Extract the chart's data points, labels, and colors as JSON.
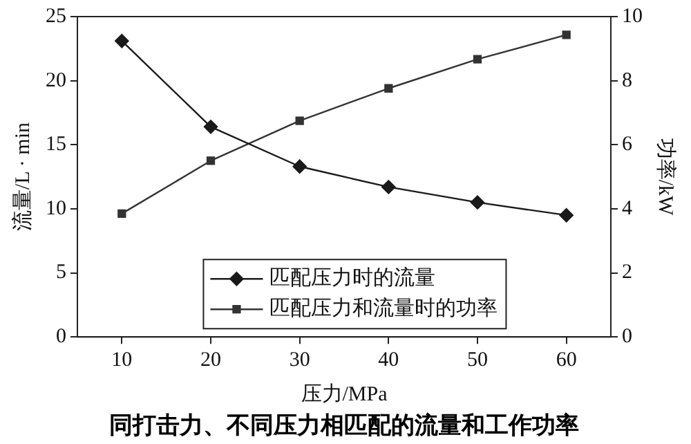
{
  "chart_data": {
    "type": "line",
    "title": "同打击力、不同压力相匹配的流量和工作功率",
    "xlabel": "压力/MPa",
    "ylabel": "流量/L · min",
    "y2label": "功率/kW",
    "x": [
      10,
      20,
      30,
      40,
      50,
      60
    ],
    "xlim": [
      5,
      65
    ],
    "xticks": [
      10,
      20,
      30,
      40,
      50,
      60
    ],
    "ylim": [
      0,
      25
    ],
    "yticks": [
      0,
      5,
      10,
      15,
      20,
      25
    ],
    "y2lim": [
      0,
      10
    ],
    "y2ticks": [
      0,
      2,
      4,
      6,
      8,
      10
    ],
    "grid": false,
    "legend": "bottom",
    "line_style": "solid",
    "series": [
      {
        "name": "匹配压力时的流量",
        "color": "#1a1a1a",
        "marker": "diamond",
        "values": [
          23.1,
          16.4,
          13.3,
          11.7,
          10.5,
          9.5
        ]
      },
      {
        "name": "匹配压力和流量时的功率",
        "color": "#333333",
        "marker": "square",
        "axis": "y2",
        "values": [
          3.85,
          5.5,
          6.75,
          7.76,
          8.67,
          9.43
        ]
      }
    ]
  }
}
